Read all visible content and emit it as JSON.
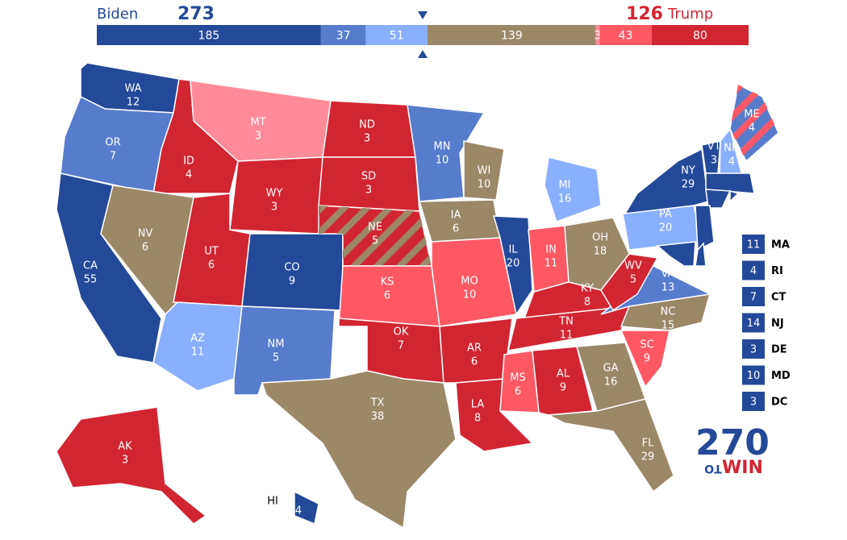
{
  "header": {
    "dem_name": "Biden",
    "dem_total": 273,
    "rep_total": 126,
    "rep_name": "Trump"
  },
  "colors": {
    "safe_d": "#244999",
    "likely_d": "#577ccc",
    "lean_d": "#8aafff",
    "tossup": "#9c8767",
    "lean_r": "#ff8b98",
    "likely_r": "#ff5865",
    "safe_r": "#d22532"
  },
  "bar": {
    "segments": [
      {
        "value": 185,
        "rating": "safe_d"
      },
      {
        "value": 37,
        "rating": "likely_d"
      },
      {
        "value": 51,
        "rating": "lean_d"
      },
      {
        "value": 139,
        "rating": "tossup"
      },
      {
        "value": 3,
        "rating": "lean_r"
      },
      {
        "value": 43,
        "rating": "likely_r"
      },
      {
        "value": 80,
        "rating": "safe_r"
      }
    ]
  },
  "states": [
    {
      "abbr": "WA",
      "votes": 12,
      "rating": "safe_d"
    },
    {
      "abbr": "OR",
      "votes": 7,
      "rating": "likely_d"
    },
    {
      "abbr": "CA",
      "votes": 55,
      "rating": "safe_d"
    },
    {
      "abbr": "ID",
      "votes": 4,
      "rating": "safe_r"
    },
    {
      "abbr": "NV",
      "votes": 6,
      "rating": "tossup"
    },
    {
      "abbr": "MT",
      "votes": 3,
      "rating": "lean_r"
    },
    {
      "abbr": "WY",
      "votes": 3,
      "rating": "safe_r"
    },
    {
      "abbr": "UT",
      "votes": 6,
      "rating": "safe_r"
    },
    {
      "abbr": "AZ",
      "votes": 11,
      "rating": "lean_d"
    },
    {
      "abbr": "CO",
      "votes": 9,
      "rating": "safe_d"
    },
    {
      "abbr": "NM",
      "votes": 5,
      "rating": "likely_d"
    },
    {
      "abbr": "ND",
      "votes": 3,
      "rating": "safe_r"
    },
    {
      "abbr": "SD",
      "votes": 3,
      "rating": "safe_r"
    },
    {
      "abbr": "NE",
      "votes": 5,
      "rating": "safe_r",
      "stripe": "tossup"
    },
    {
      "abbr": "KS",
      "votes": 6,
      "rating": "likely_r"
    },
    {
      "abbr": "OK",
      "votes": 7,
      "rating": "safe_r"
    },
    {
      "abbr": "TX",
      "votes": 38,
      "rating": "tossup"
    },
    {
      "abbr": "MN",
      "votes": 10,
      "rating": "likely_d"
    },
    {
      "abbr": "IA",
      "votes": 6,
      "rating": "tossup"
    },
    {
      "abbr": "MO",
      "votes": 10,
      "rating": "likely_r"
    },
    {
      "abbr": "AR",
      "votes": 6,
      "rating": "safe_r"
    },
    {
      "abbr": "LA",
      "votes": 8,
      "rating": "safe_r"
    },
    {
      "abbr": "WI",
      "votes": 10,
      "rating": "tossup"
    },
    {
      "abbr": "IL",
      "votes": 20,
      "rating": "safe_d"
    },
    {
      "abbr": "MI",
      "votes": 16,
      "rating": "lean_d"
    },
    {
      "abbr": "IN",
      "votes": 11,
      "rating": "likely_r"
    },
    {
      "abbr": "OH",
      "votes": 18,
      "rating": "tossup"
    },
    {
      "abbr": "KY",
      "votes": 8,
      "rating": "safe_r"
    },
    {
      "abbr": "TN",
      "votes": 11,
      "rating": "safe_r"
    },
    {
      "abbr": "MS",
      "votes": 6,
      "rating": "likely_r"
    },
    {
      "abbr": "AL",
      "votes": 9,
      "rating": "safe_r"
    },
    {
      "abbr": "GA",
      "votes": 16,
      "rating": "tossup"
    },
    {
      "abbr": "FL",
      "votes": 29,
      "rating": "tossup"
    },
    {
      "abbr": "SC",
      "votes": 9,
      "rating": "likely_r"
    },
    {
      "abbr": "NC",
      "votes": 15,
      "rating": "tossup"
    },
    {
      "abbr": "VA",
      "votes": 13,
      "rating": "likely_d"
    },
    {
      "abbr": "WV",
      "votes": 5,
      "rating": "safe_r"
    },
    {
      "abbr": "PA",
      "votes": 20,
      "rating": "lean_d"
    },
    {
      "abbr": "NY",
      "votes": 29,
      "rating": "safe_d"
    },
    {
      "abbr": "VT",
      "votes": 3,
      "rating": "safe_d"
    },
    {
      "abbr": "NH",
      "votes": 4,
      "rating": "lean_d"
    },
    {
      "abbr": "ME",
      "votes": 4,
      "rating": "likely_d",
      "stripe": "likely_r"
    },
    {
      "abbr": "AK",
      "votes": 3,
      "rating": "safe_r"
    },
    {
      "abbr": "HI",
      "votes": 4,
      "rating": "safe_d"
    },
    {
      "abbr": "MA",
      "votes": 11,
      "rating": "safe_d",
      "callout": true
    },
    {
      "abbr": "RI",
      "votes": 4,
      "rating": "safe_d",
      "callout": true
    },
    {
      "abbr": "CT",
      "votes": 7,
      "rating": "safe_d",
      "callout": true
    },
    {
      "abbr": "NJ",
      "votes": 14,
      "rating": "safe_d",
      "callout": true
    },
    {
      "abbr": "DE",
      "votes": 3,
      "rating": "safe_d",
      "callout": true
    },
    {
      "abbr": "MD",
      "votes": 10,
      "rating": "safe_d",
      "callout": true
    },
    {
      "abbr": "DC",
      "votes": 3,
      "rating": "safe_d",
      "callout": true
    }
  ],
  "logo": {
    "number": "270",
    "to": "TO",
    "win": "WIN"
  }
}
